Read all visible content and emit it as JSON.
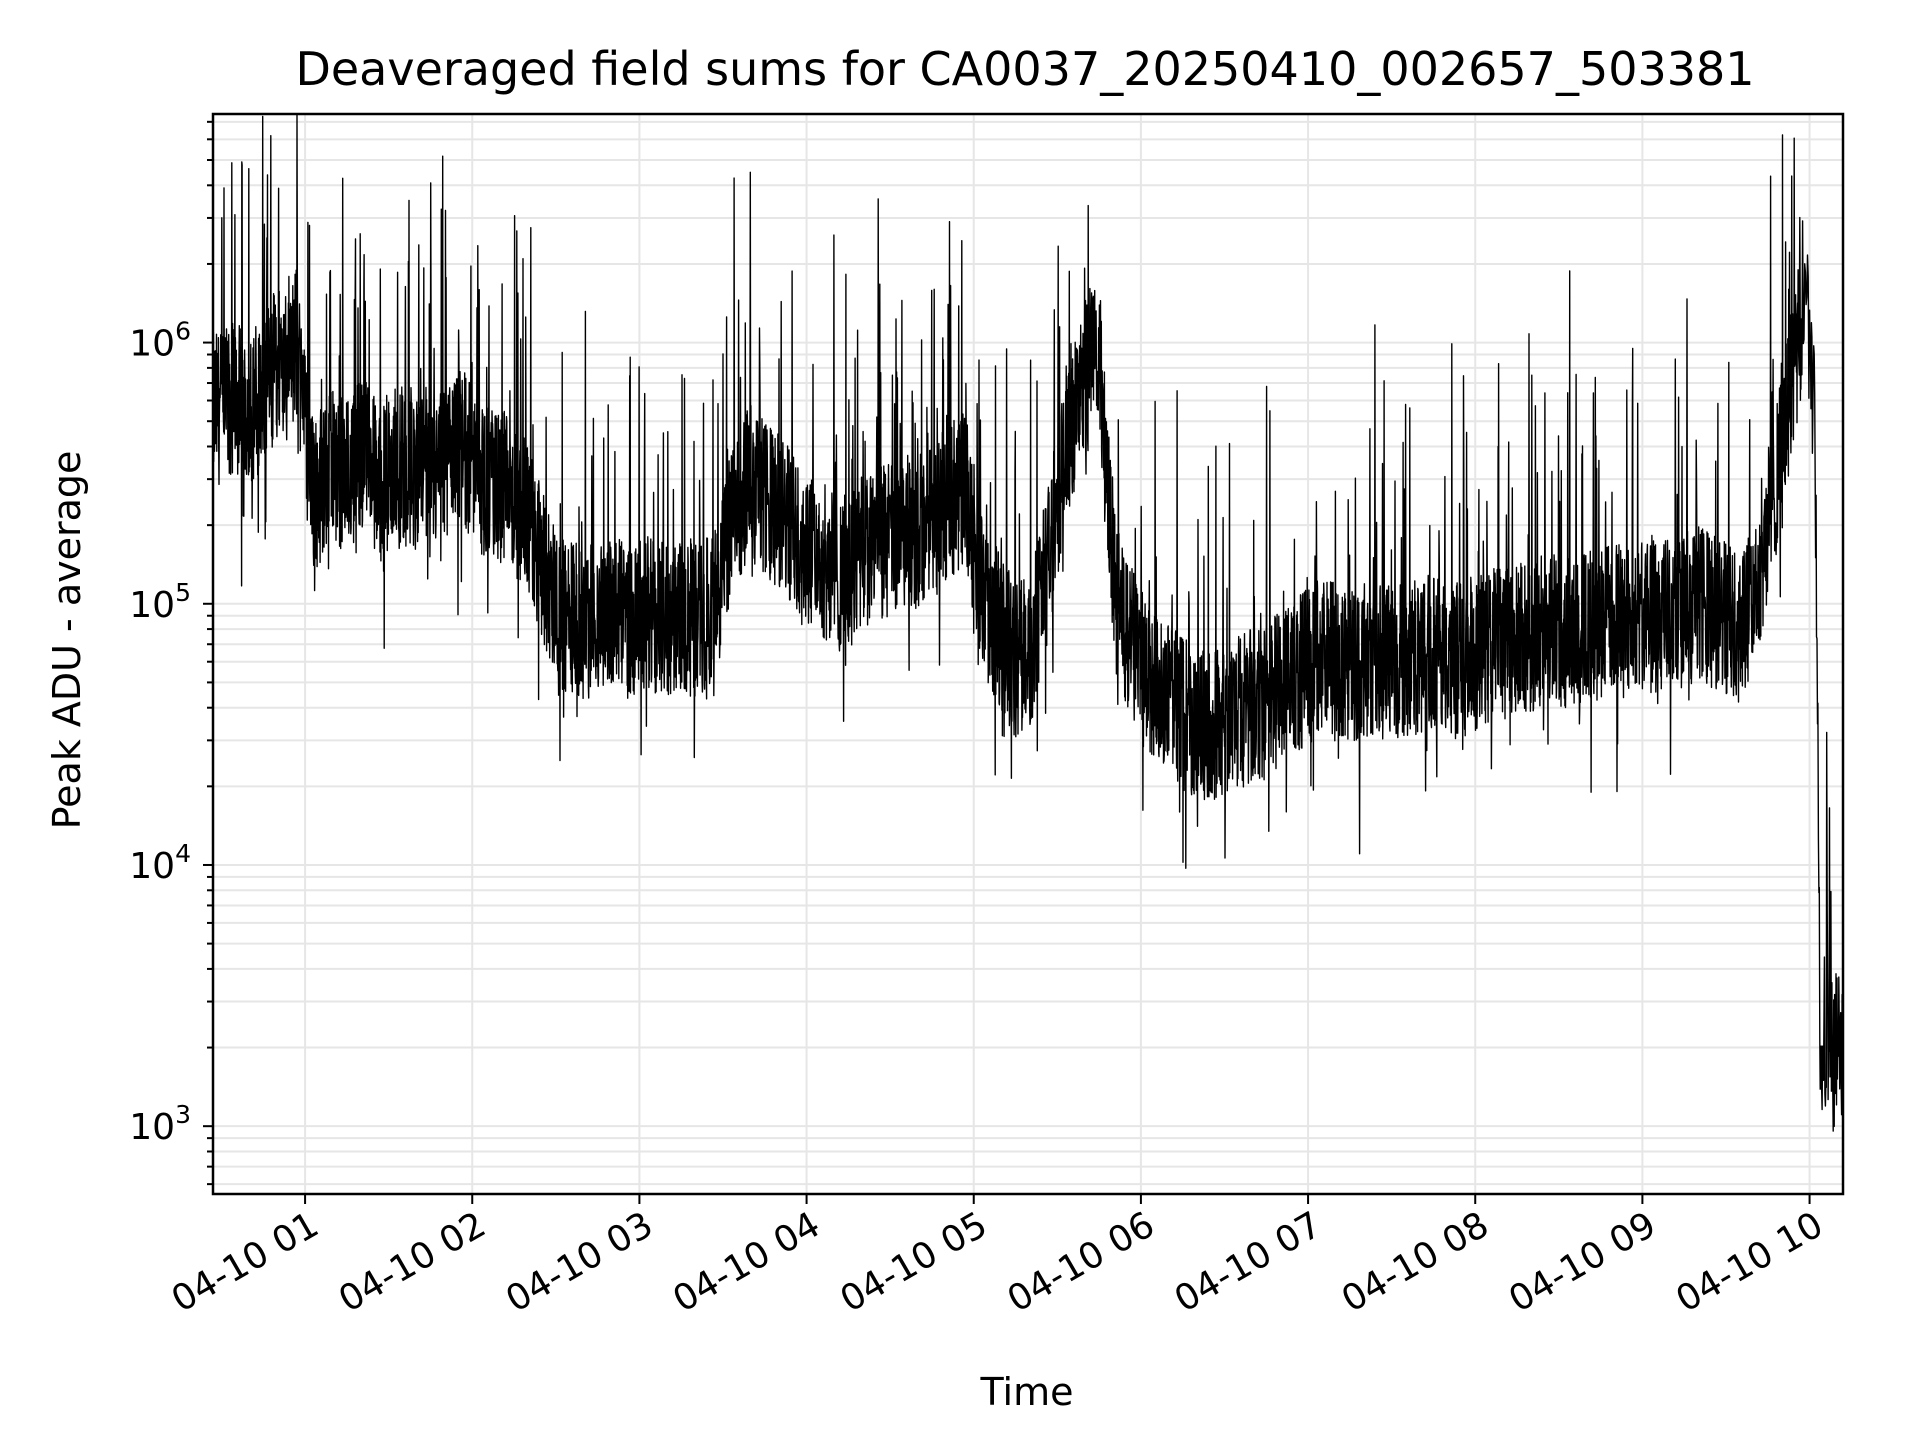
{
  "chart_data": {
    "type": "line",
    "title": "Deaveraged field sums for CA0037_20250410_002657_503381",
    "xlabel": "Time",
    "ylabel": "Peak ADU - average",
    "yscale": "log",
    "ylim": [
      550,
      7500000
    ],
    "xlim": [
      "04-10 00:26:57",
      "04-10 10:12:00"
    ],
    "grid": "major and minor",
    "x_ticks": [
      {
        "label": "04-10 01",
        "hour": 1
      },
      {
        "label": "04-10 02",
        "hour": 2
      },
      {
        "label": "04-10 03",
        "hour": 3
      },
      {
        "label": "04-10 04",
        "hour": 4
      },
      {
        "label": "04-10 05",
        "hour": 5
      },
      {
        "label": "04-10 06",
        "hour": 6
      },
      {
        "label": "04-10 07",
        "hour": 7
      },
      {
        "label": "04-10 08",
        "hour": 8
      },
      {
        "label": "04-10 09",
        "hour": 9
      },
      {
        "label": "04-10 10",
        "hour": 10
      }
    ],
    "y_ticks": [
      {
        "base": "10",
        "exp": "3",
        "value": 1000
      },
      {
        "base": "10",
        "exp": "4",
        "value": 10000
      },
      {
        "base": "10",
        "exp": "5",
        "value": 100000
      },
      {
        "base": "10",
        "exp": "6",
        "value": 1000000
      }
    ],
    "line_color": "#000000",
    "series": [
      {
        "time": [
          "00:27",
          "00:33",
          "00:39",
          "00:45",
          "00:51",
          "00:57",
          "01:03",
          "01:09",
          "01:15",
          "01:21",
          "01:27",
          "01:33",
          "01:39",
          "01:45",
          "01:51",
          "01:57",
          "02:03",
          "02:09",
          "02:15",
          "02:21",
          "02:27",
          "02:33",
          "02:39",
          "02:45",
          "02:51",
          "02:57",
          "03:03",
          "03:09",
          "03:15",
          "03:21",
          "03:27",
          "03:33",
          "03:39",
          "03:45",
          "03:51",
          "03:57",
          "04:03",
          "04:09",
          "04:15",
          "04:21",
          "04:27",
          "04:33",
          "04:39",
          "04:45",
          "04:51",
          "04:57",
          "05:03",
          "05:09",
          "05:15",
          "05:21",
          "05:27",
          "05:33",
          "05:39",
          "05:45",
          "05:51",
          "05:57",
          "06:03",
          "06:09",
          "06:15",
          "06:21",
          "06:27",
          "06:33",
          "06:39",
          "06:45",
          "06:51",
          "06:57",
          "07:03",
          "07:09",
          "07:15",
          "07:21",
          "07:27",
          "07:33",
          "07:39",
          "07:45",
          "07:51",
          "07:57",
          "08:03",
          "08:09",
          "08:15",
          "08:21",
          "08:27",
          "08:33",
          "08:39",
          "08:45",
          "08:51",
          "08:57",
          "09:03",
          "09:09",
          "09:15",
          "09:21",
          "09:27",
          "09:33",
          "09:39",
          "09:45",
          "09:51",
          "09:57",
          "10:00",
          "10:02",
          "10:04",
          "10:06",
          "10:08",
          "10:10",
          "10:12"
        ],
        "value": [
          550000,
          600000,
          580000,
          620000,
          900000,
          1000000,
          250000,
          350000,
          300000,
          400000,
          280000,
          350000,
          320000,
          300000,
          350000,
          400000,
          300000,
          280000,
          250000,
          200000,
          120000,
          90000,
          85000,
          88000,
          90000,
          85000,
          95000,
          85000,
          90000,
          88000,
          100000,
          200000,
          300000,
          250000,
          220000,
          180000,
          150000,
          140000,
          130000,
          160000,
          170000,
          180000,
          190000,
          200000,
          250000,
          280000,
          110000,
          80000,
          60000,
          70000,
          150000,
          400000,
          700000,
          900000,
          100000,
          70000,
          50000,
          45000,
          38000,
          36000,
          35000,
          38000,
          40000,
          42000,
          50000,
          55000,
          60000,
          62000,
          58000,
          62000,
          65000,
          60000,
          62000,
          65000,
          60000,
          62000,
          68000,
          70000,
          72000,
          75000,
          78000,
          80000,
          82000,
          85000,
          85000,
          85000,
          88000,
          90000,
          95000,
          100000,
          90000,
          85000,
          95000,
          200000,
          500000,
          1100000,
          1200000,
          400000,
          1300,
          1500,
          1800,
          2000,
          2200
        ]
      }
    ],
    "annotations": []
  }
}
